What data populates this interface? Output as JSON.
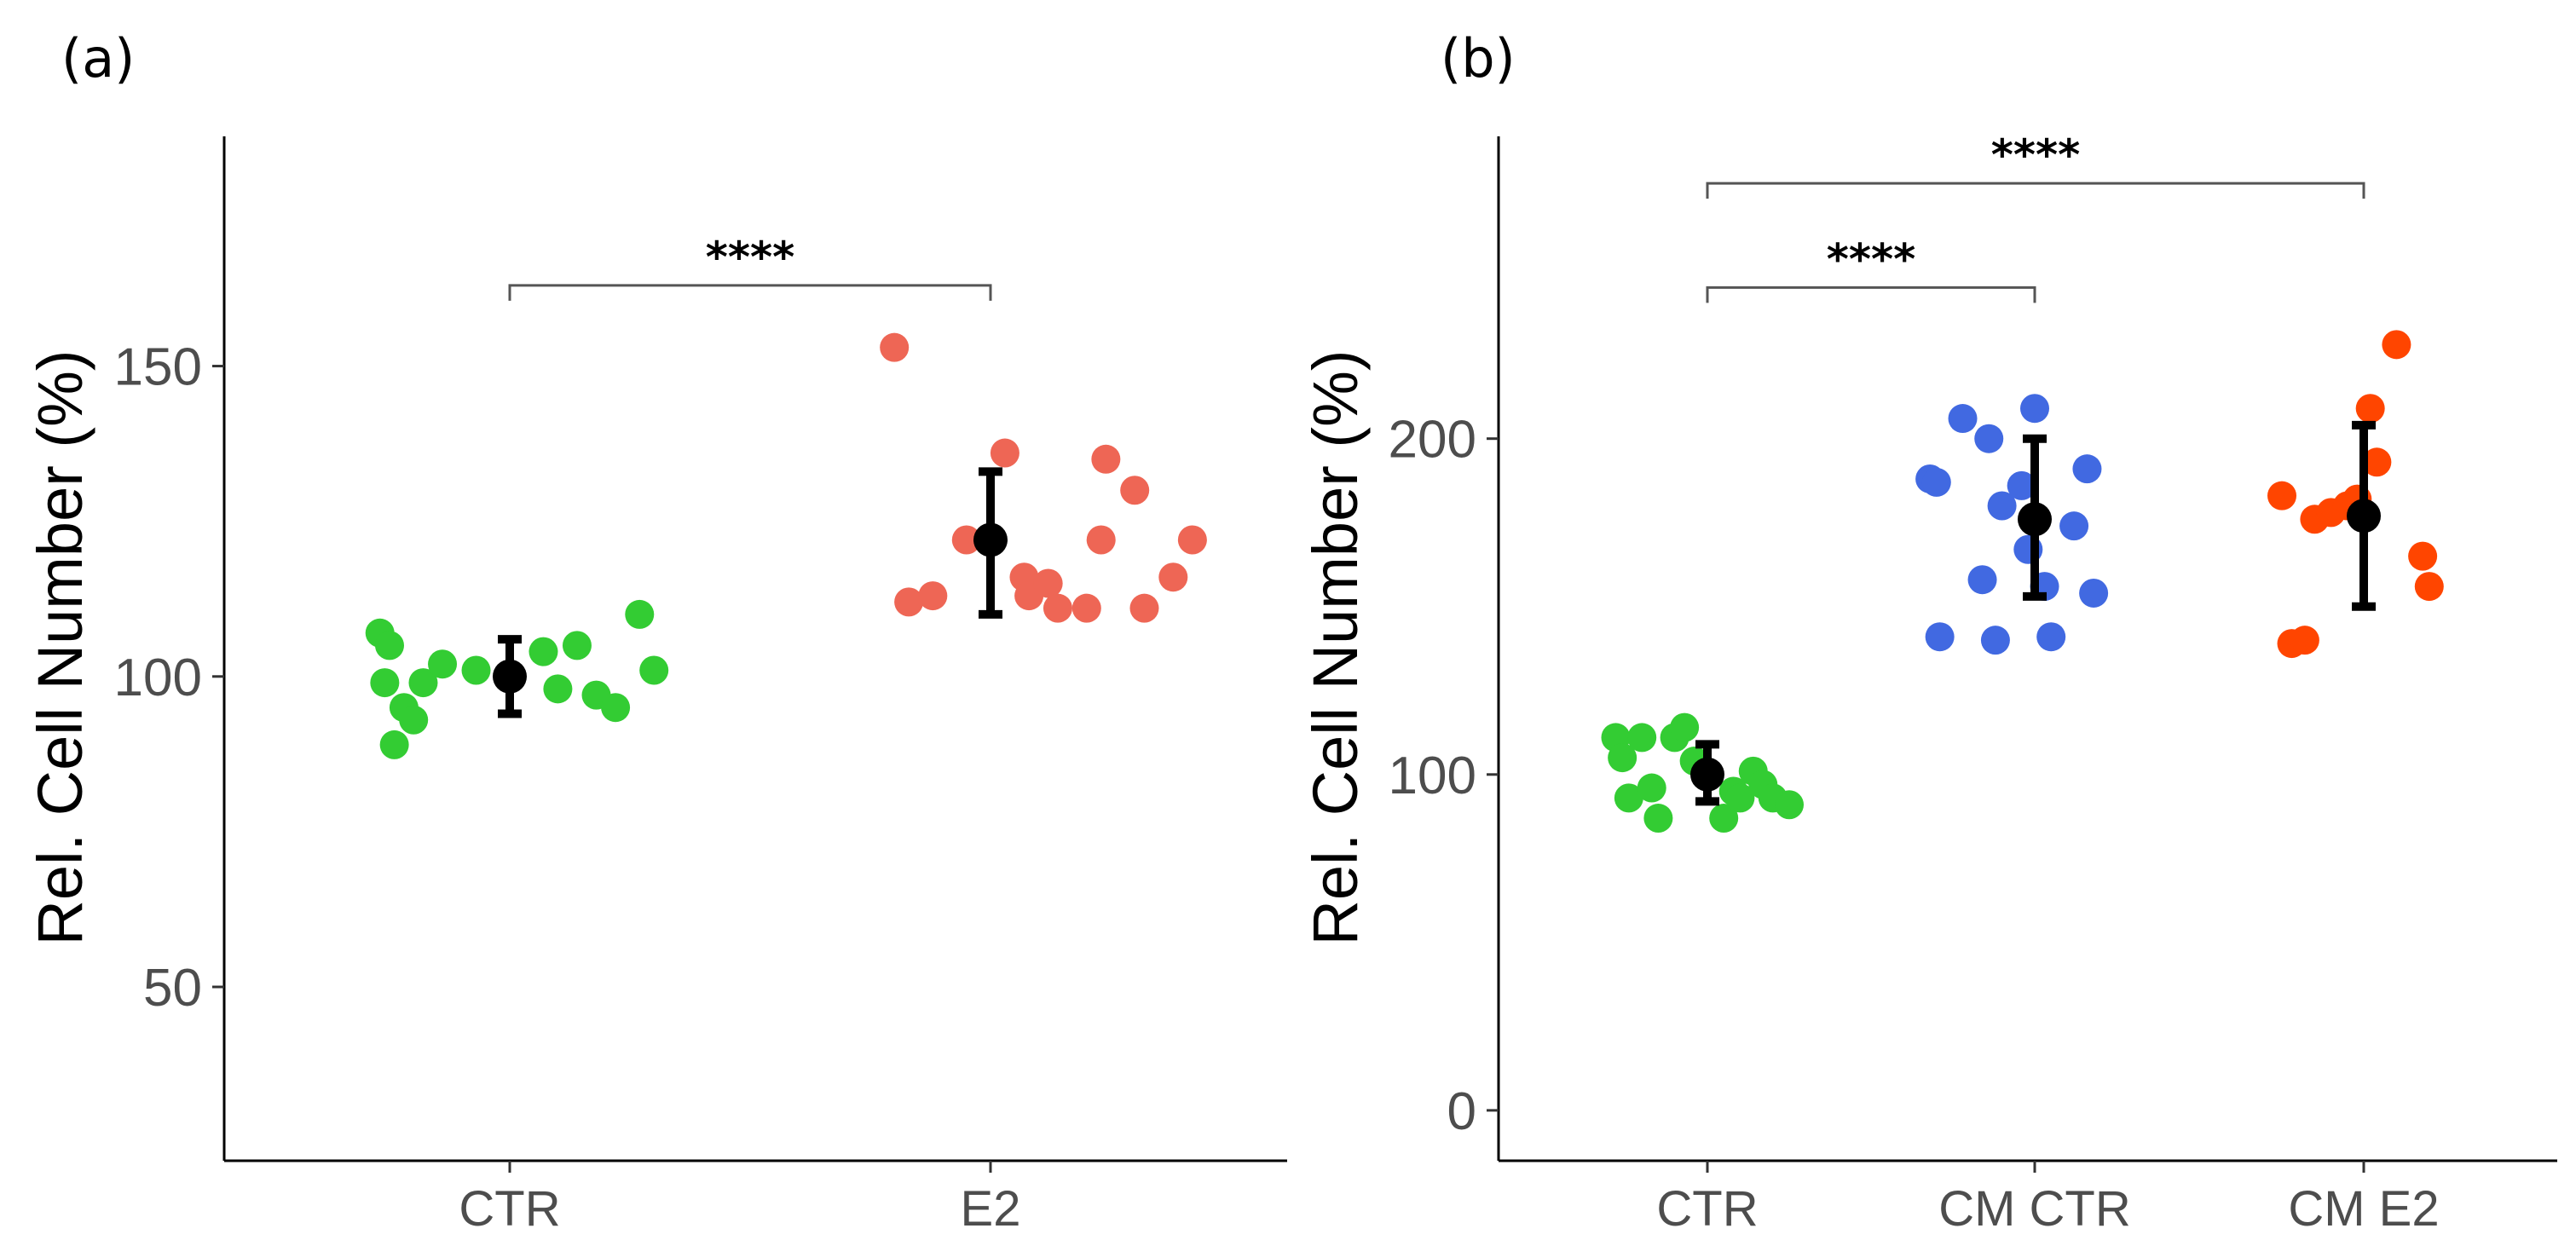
{
  "chart_data": [
    {
      "panel_label": "(a)",
      "type": "scatter",
      "ylabel": "Rel. Cell Number (%)",
      "xlabel": "",
      "ylim": [
        22,
        187
      ],
      "yticks": [
        50,
        100,
        150
      ],
      "categories": [
        "CTR",
        "E2"
      ],
      "series": [
        {
          "name": "CTR",
          "color": "#33cc33",
          "points": [
            {
              "x": -0.27,
              "y": 107
            },
            {
              "x": -0.25,
              "y": 105
            },
            {
              "x": -0.26,
              "y": 99
            },
            {
              "x": -0.22,
              "y": 95
            },
            {
              "x": -0.2,
              "y": 93
            },
            {
              "x": -0.18,
              "y": 99
            },
            {
              "x": -0.24,
              "y": 89
            },
            {
              "x": -0.14,
              "y": 102
            },
            {
              "x": -0.07,
              "y": 101
            },
            {
              "x": 0.07,
              "y": 104
            },
            {
              "x": 0.1,
              "y": 98
            },
            {
              "x": 0.14,
              "y": 105
            },
            {
              "x": 0.18,
              "y": 97
            },
            {
              "x": 0.22,
              "y": 95
            },
            {
              "x": 0.27,
              "y": 110
            },
            {
              "x": 0.3,
              "y": 101
            }
          ],
          "mean": 100,
          "error": [
            94,
            106
          ]
        },
        {
          "name": "E2",
          "color": "#ee6655",
          "points": [
            {
              "x": -0.2,
              "y": 153
            },
            {
              "x": -0.17,
              "y": 112
            },
            {
              "x": -0.12,
              "y": 113
            },
            {
              "x": -0.05,
              "y": 122
            },
            {
              "x": 0.03,
              "y": 136
            },
            {
              "x": 0.07,
              "y": 116
            },
            {
              "x": 0.08,
              "y": 113
            },
            {
              "x": 0.12,
              "y": 115
            },
            {
              "x": 0.14,
              "y": 111
            },
            {
              "x": 0.2,
              "y": 111
            },
            {
              "x": 0.23,
              "y": 122
            },
            {
              "x": 0.24,
              "y": 135
            },
            {
              "x": 0.3,
              "y": 130
            },
            {
              "x": 0.32,
              "y": 111
            },
            {
              "x": 0.38,
              "y": 116
            },
            {
              "x": 0.42,
              "y": 122
            }
          ],
          "mean": 122,
          "error": [
            110,
            133
          ]
        }
      ],
      "significance": [
        {
          "from": "CTR",
          "to": "E2",
          "label": "****",
          "y": 163
        }
      ]
    },
    {
      "panel_label": "(b)",
      "type": "scatter",
      "ylabel": "Rel. Cell Number (%)",
      "xlabel": "",
      "ylim": [
        -15,
        290
      ],
      "yticks": [
        0,
        100,
        200
      ],
      "categories": [
        "CTR",
        "CM CTR",
        "CM E2"
      ],
      "series": [
        {
          "name": "CTR",
          "color": "#33cc33",
          "points": [
            {
              "x": -0.28,
              "y": 111
            },
            {
              "x": -0.26,
              "y": 105
            },
            {
              "x": -0.24,
              "y": 93
            },
            {
              "x": -0.2,
              "y": 111
            },
            {
              "x": -0.17,
              "y": 96
            },
            {
              "x": -0.15,
              "y": 87
            },
            {
              "x": -0.1,
              "y": 111
            },
            {
              "x": -0.07,
              "y": 114
            },
            {
              "x": -0.04,
              "y": 104
            },
            {
              "x": 0.05,
              "y": 87
            },
            {
              "x": 0.08,
              "y": 95
            },
            {
              "x": 0.1,
              "y": 93
            },
            {
              "x": 0.14,
              "y": 101
            },
            {
              "x": 0.17,
              "y": 97
            },
            {
              "x": 0.2,
              "y": 93
            },
            {
              "x": 0.25,
              "y": 91
            }
          ],
          "mean": 100,
          "error": [
            92,
            109
          ]
        },
        {
          "name": "CM CTR",
          "color": "#4169e1",
          "points": [
            {
              "x": -0.32,
              "y": 188
            },
            {
              "x": -0.3,
              "y": 187
            },
            {
              "x": -0.29,
              "y": 141
            },
            {
              "x": -0.22,
              "y": 206
            },
            {
              "x": -0.16,
              "y": 158
            },
            {
              "x": -0.14,
              "y": 200
            },
            {
              "x": -0.12,
              "y": 140
            },
            {
              "x": -0.1,
              "y": 180
            },
            {
              "x": -0.04,
              "y": 186
            },
            {
              "x": -0.02,
              "y": 167
            },
            {
              "x": 0.0,
              "y": 209
            },
            {
              "x": 0.03,
              "y": 156
            },
            {
              "x": 0.05,
              "y": 141
            },
            {
              "x": 0.12,
              "y": 174
            },
            {
              "x": 0.16,
              "y": 191
            },
            {
              "x": 0.18,
              "y": 154
            }
          ],
          "mean": 176,
          "error": [
            153,
            200
          ]
        },
        {
          "name": "CM E2",
          "color": "#ff4500",
          "points": [
            {
              "x": -0.25,
              "y": 183
            },
            {
              "x": -0.22,
              "y": 139
            },
            {
              "x": -0.18,
              "y": 140
            },
            {
              "x": -0.15,
              "y": 176
            },
            {
              "x": -0.1,
              "y": 178
            },
            {
              "x": -0.05,
              "y": 180
            },
            {
              "x": -0.02,
              "y": 182
            },
            {
              "x": 0.02,
              "y": 209
            },
            {
              "x": 0.04,
              "y": 193
            },
            {
              "x": 0.1,
              "y": 228
            },
            {
              "x": 0.18,
              "y": 165
            },
            {
              "x": 0.2,
              "y": 156
            }
          ],
          "mean": 177,
          "error": [
            150,
            204
          ]
        }
      ],
      "significance": [
        {
          "from": "CTR",
          "to": "CM CTR",
          "label": "****",
          "y": 245
        },
        {
          "from": "CTR",
          "to": "CM E2",
          "label": "****",
          "y": 276
        }
      ]
    }
  ]
}
